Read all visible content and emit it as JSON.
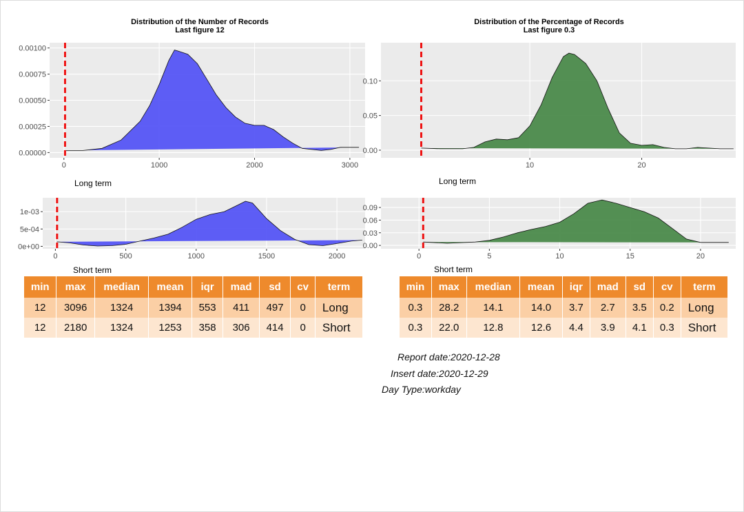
{
  "chart_data": [
    {
      "type": "area",
      "title": "Distribution of the Number of Records",
      "subtitle": "Last figure 12",
      "xlabel": "Long term",
      "x": [
        12,
        200,
        400,
        600,
        800,
        900,
        1000,
        1100,
        1160,
        1200,
        1300,
        1400,
        1500,
        1600,
        1700,
        1800,
        1900,
        2000,
        2100,
        2200,
        2300,
        2400,
        2500,
        2600,
        2700,
        2800,
        2900,
        3000,
        3096
      ],
      "values": [
        2e-05,
        2e-05,
        4e-05,
        0.00012,
        0.0003,
        0.00045,
        0.00065,
        0.00088,
        0.00098,
        0.00097,
        0.00094,
        0.00085,
        0.0007,
        0.00055,
        0.00043,
        0.00034,
        0.00028,
        0.00026,
        0.00026,
        0.00022,
        0.00015,
        9e-05,
        4e-05,
        3e-05,
        2e-05,
        3e-05,
        5e-05,
        5e-05,
        5e-05
      ],
      "color": "#5555f5",
      "xlim": [
        -150,
        3160
      ],
      "ylim": [
        -5e-05,
        0.00105
      ],
      "xticks": [
        0,
        1000,
        2000,
        3000
      ],
      "yticks": [
        {
          "value": 0,
          "label": "0.00000"
        },
        {
          "value": 0.00025,
          "label": "0.00025"
        },
        {
          "value": 0.0005,
          "label": "0.00050"
        },
        {
          "value": 0.00075,
          "label": "0.00075"
        },
        {
          "value": 0.001,
          "label": "0.00100"
        }
      ],
      "grid": true,
      "vline": 12,
      "vline_color": "#ee1111"
    },
    {
      "type": "area",
      "xlabel": "Short term",
      "x": [
        12,
        100,
        200,
        300,
        400,
        500,
        600,
        700,
        800,
        900,
        1000,
        1100,
        1200,
        1300,
        1350,
        1400,
        1500,
        1600,
        1700,
        1800,
        1900,
        2000,
        2100,
        2180
      ],
      "values": [
        0.00013,
        0.0001,
        4e-05,
        1e-05,
        2e-05,
        6e-05,
        0.00015,
        0.00024,
        0.00035,
        0.00055,
        0.00078,
        0.00092,
        0.001,
        0.0012,
        0.0013,
        0.00125,
        0.0008,
        0.00045,
        0.0002,
        5e-05,
        2e-05,
        8e-05,
        0.00015,
        0.00018
      ],
      "color": "#5555f5",
      "xlim": [
        -90,
        2200
      ],
      "ylim": [
        -7e-05,
        0.0014
      ],
      "xticks": [
        0,
        500,
        1000,
        1500,
        2000
      ],
      "yticks": [
        {
          "value": 0,
          "label": "0e+00"
        },
        {
          "value": 0.0005,
          "label": "5e-04"
        },
        {
          "value": 0.001,
          "label": "1e-03"
        }
      ],
      "grid": true,
      "vline": 12,
      "vline_color": "#ee1111"
    },
    {
      "type": "area",
      "title": "Distribution of the Percentage of Records",
      "subtitle": "Last figure 0.3",
      "xlabel": "Long term",
      "x": [
        0.3,
        2,
        4,
        5,
        6,
        7,
        8,
        9,
        10,
        11,
        12,
        13,
        13.5,
        14,
        15,
        16,
        17,
        18,
        19,
        20,
        21,
        22,
        23,
        24,
        25,
        26,
        27,
        28.2
      ],
      "values": [
        0.003,
        0.002,
        0.002,
        0.004,
        0.012,
        0.016,
        0.015,
        0.018,
        0.035,
        0.065,
        0.105,
        0.135,
        0.14,
        0.138,
        0.125,
        0.1,
        0.06,
        0.025,
        0.01,
        0.007,
        0.008,
        0.004,
        0.002,
        0.002,
        0.004,
        0.003,
        0.002,
        0.002
      ],
      "color": "#4b8a4b",
      "xlim": [
        -3.3,
        28.4
      ],
      "ylim": [
        -0.011,
        0.155
      ],
      "xticks": [
        10,
        20
      ],
      "yticks": [
        {
          "value": 0,
          "label": "0.00"
        },
        {
          "value": 0.05,
          "label": "0.05"
        },
        {
          "value": 0.1,
          "label": "0.10"
        }
      ],
      "grid": true,
      "vline": 0.3,
      "vline_color": "#ee1111"
    },
    {
      "type": "area",
      "xlabel": "Short term",
      "x": [
        0.3,
        2,
        4,
        5,
        6,
        7,
        8,
        9,
        10,
        11,
        12,
        13,
        14,
        15,
        16,
        17,
        18,
        19,
        20,
        22
      ],
      "values": [
        0.008,
        0.005,
        0.008,
        0.012,
        0.02,
        0.03,
        0.038,
        0.045,
        0.055,
        0.075,
        0.1,
        0.108,
        0.1,
        0.09,
        0.08,
        0.065,
        0.04,
        0.015,
        0.007,
        0.007
      ],
      "color": "#4b8a4b",
      "xlim": [
        -2.7,
        22.5
      ],
      "ylim": [
        -0.008,
        0.113
      ],
      "xticks": [
        0,
        5,
        10,
        15,
        20
      ],
      "yticks": [
        {
          "value": 0,
          "label": "0.00"
        },
        {
          "value": 0.03,
          "label": "0.03"
        },
        {
          "value": 0.06,
          "label": "0.06"
        },
        {
          "value": 0.09,
          "label": "0.09"
        }
      ],
      "grid": true,
      "vline": 0.3,
      "vline_color": "#ee1111"
    }
  ],
  "tables": [
    {
      "columns": [
        "min",
        "max",
        "median",
        "mean",
        "iqr",
        "mad",
        "sd",
        "cv",
        "term"
      ],
      "rows": [
        [
          "12",
          "3096",
          "1324",
          "1394",
          "553",
          "411",
          "497",
          "0",
          "Long"
        ],
        [
          "12",
          "2180",
          "1324",
          "1253",
          "358",
          "306",
          "414",
          "0",
          "Short"
        ]
      ]
    },
    {
      "columns": [
        "min",
        "max",
        "median",
        "mean",
        "iqr",
        "mad",
        "sd",
        "cv",
        "term"
      ],
      "rows": [
        [
          "0.3",
          "28.2",
          "14.1",
          "14.0",
          "3.7",
          "2.7",
          "3.5",
          "0.2",
          "Long"
        ],
        [
          "0.3",
          "22.0",
          "12.8",
          "12.6",
          "4.4",
          "3.9",
          "4.1",
          "0.3",
          "Short"
        ]
      ]
    }
  ],
  "footer": [
    "Report date:2020-12-28",
    "Insert date:2020-12-29",
    "Day Type:workday"
  ]
}
